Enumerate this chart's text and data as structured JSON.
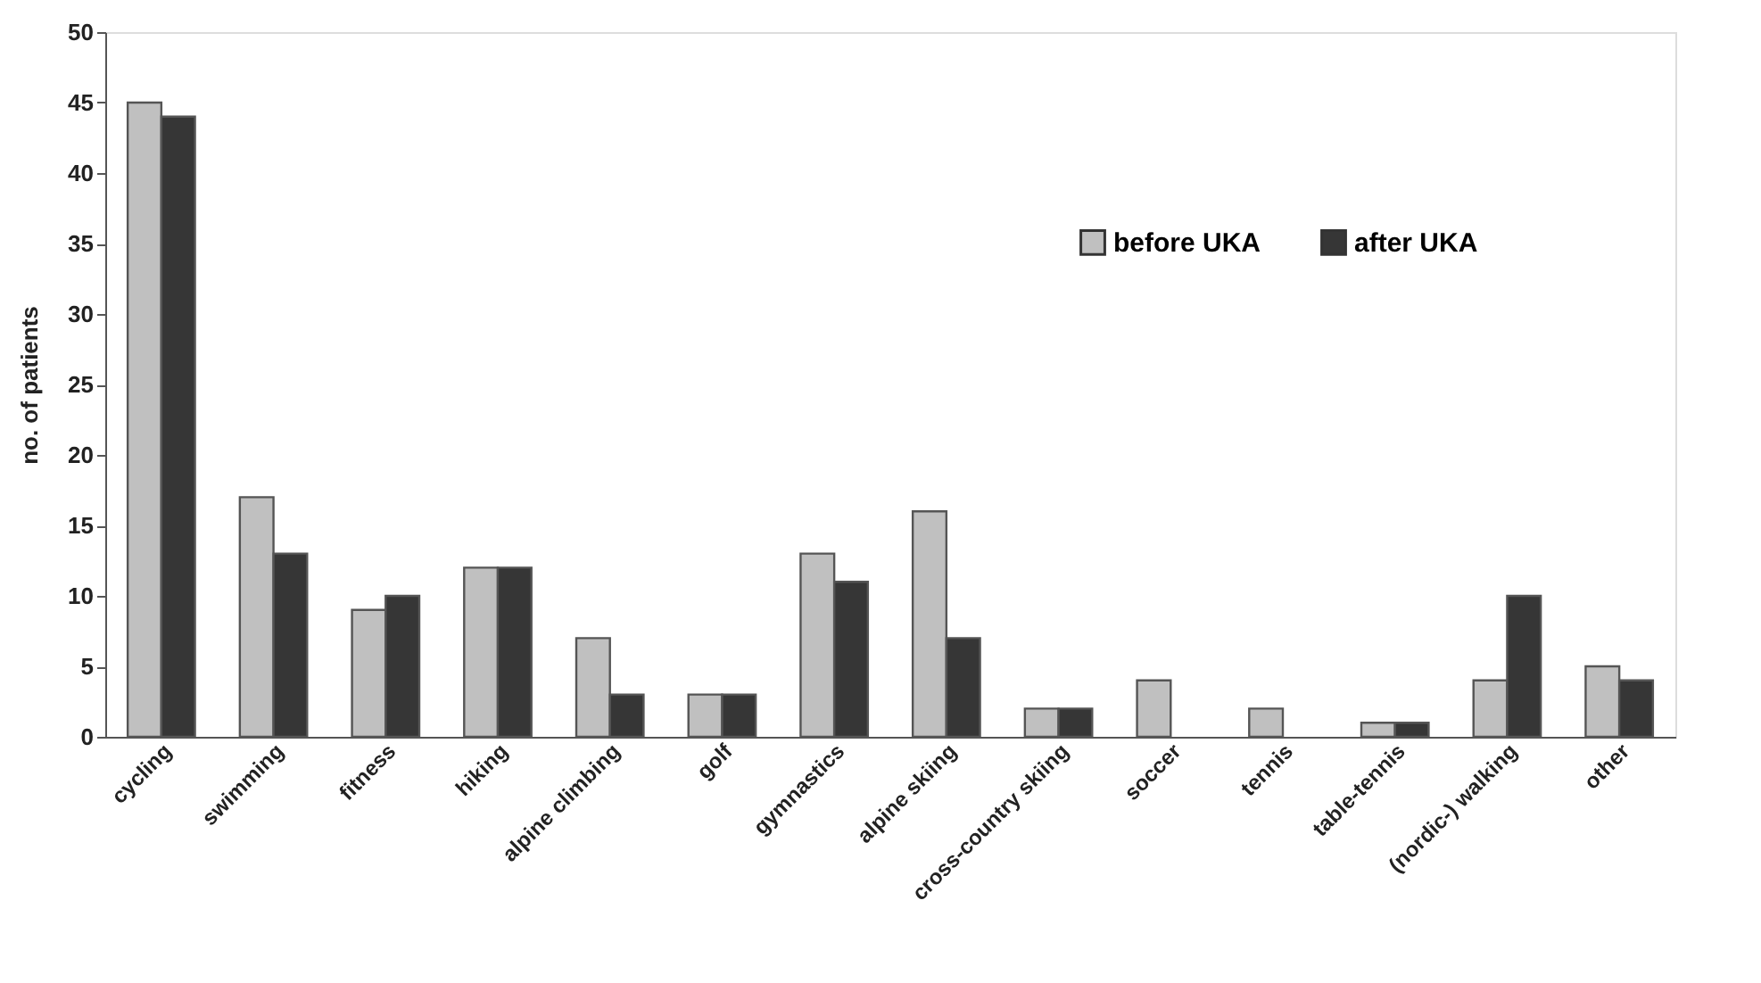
{
  "chart_data": {
    "type": "bar",
    "ylabel": "no. of patients",
    "categories": [
      "cycling",
      "swimming",
      "fitness",
      "hiking",
      "alpine climbing",
      "golf",
      "gymnastics",
      "alpine skiing",
      "cross-country skiing",
      "soccer",
      "tennis",
      "table-tennis",
      "(nordic-) walking",
      "other"
    ],
    "series": [
      {
        "name": "before UKA",
        "color": "#c0c0c0",
        "values": [
          45,
          17,
          9,
          12,
          7,
          3,
          13,
          16,
          2,
          4,
          2,
          1,
          4,
          5
        ]
      },
      {
        "name": "after UKA",
        "color": "#363636",
        "values": [
          44,
          13,
          10,
          12,
          3,
          3,
          11,
          7,
          2,
          null,
          null,
          1,
          10,
          4
        ]
      }
    ],
    "ylim": [
      0,
      50
    ],
    "yticks": [
      0,
      5,
      10,
      15,
      20,
      25,
      30,
      35,
      40,
      45,
      50
    ],
    "grid": false,
    "legend": "top right"
  }
}
